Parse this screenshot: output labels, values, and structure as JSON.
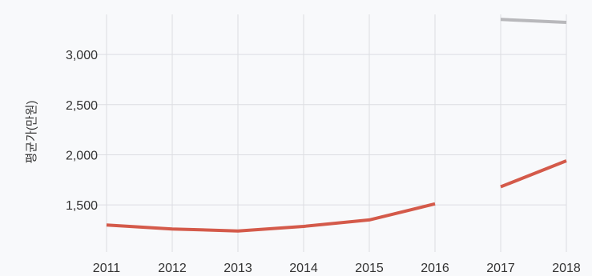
{
  "chart_data": {
    "type": "line",
    "title": "",
    "xlabel": "",
    "ylabel": "평균가(만원)",
    "categories": [
      "2011",
      "2012",
      "2013",
      "2014",
      "2015",
      "2016",
      "2017",
      "2018"
    ],
    "yticks": [
      "1,500",
      "2,000",
      "2,500",
      "3,000"
    ],
    "ylim": [
      1030,
      3400
    ],
    "grid": true,
    "legend": "none",
    "series": [
      {
        "color": "#d45a4a",
        "values": [
          1300,
          1260,
          1240,
          1285,
          1350,
          1510,
          1680,
          1940
        ]
      },
      {
        "color": "#b8b8bb",
        "values": [
          null,
          null,
          null,
          null,
          null,
          null,
          3350,
          3320
        ]
      }
    ],
    "gaps": [
      [
        5,
        6
      ]
    ],
    "colors": {
      "background": "#f8f9fb",
      "grid": "#dcdde2"
    }
  }
}
